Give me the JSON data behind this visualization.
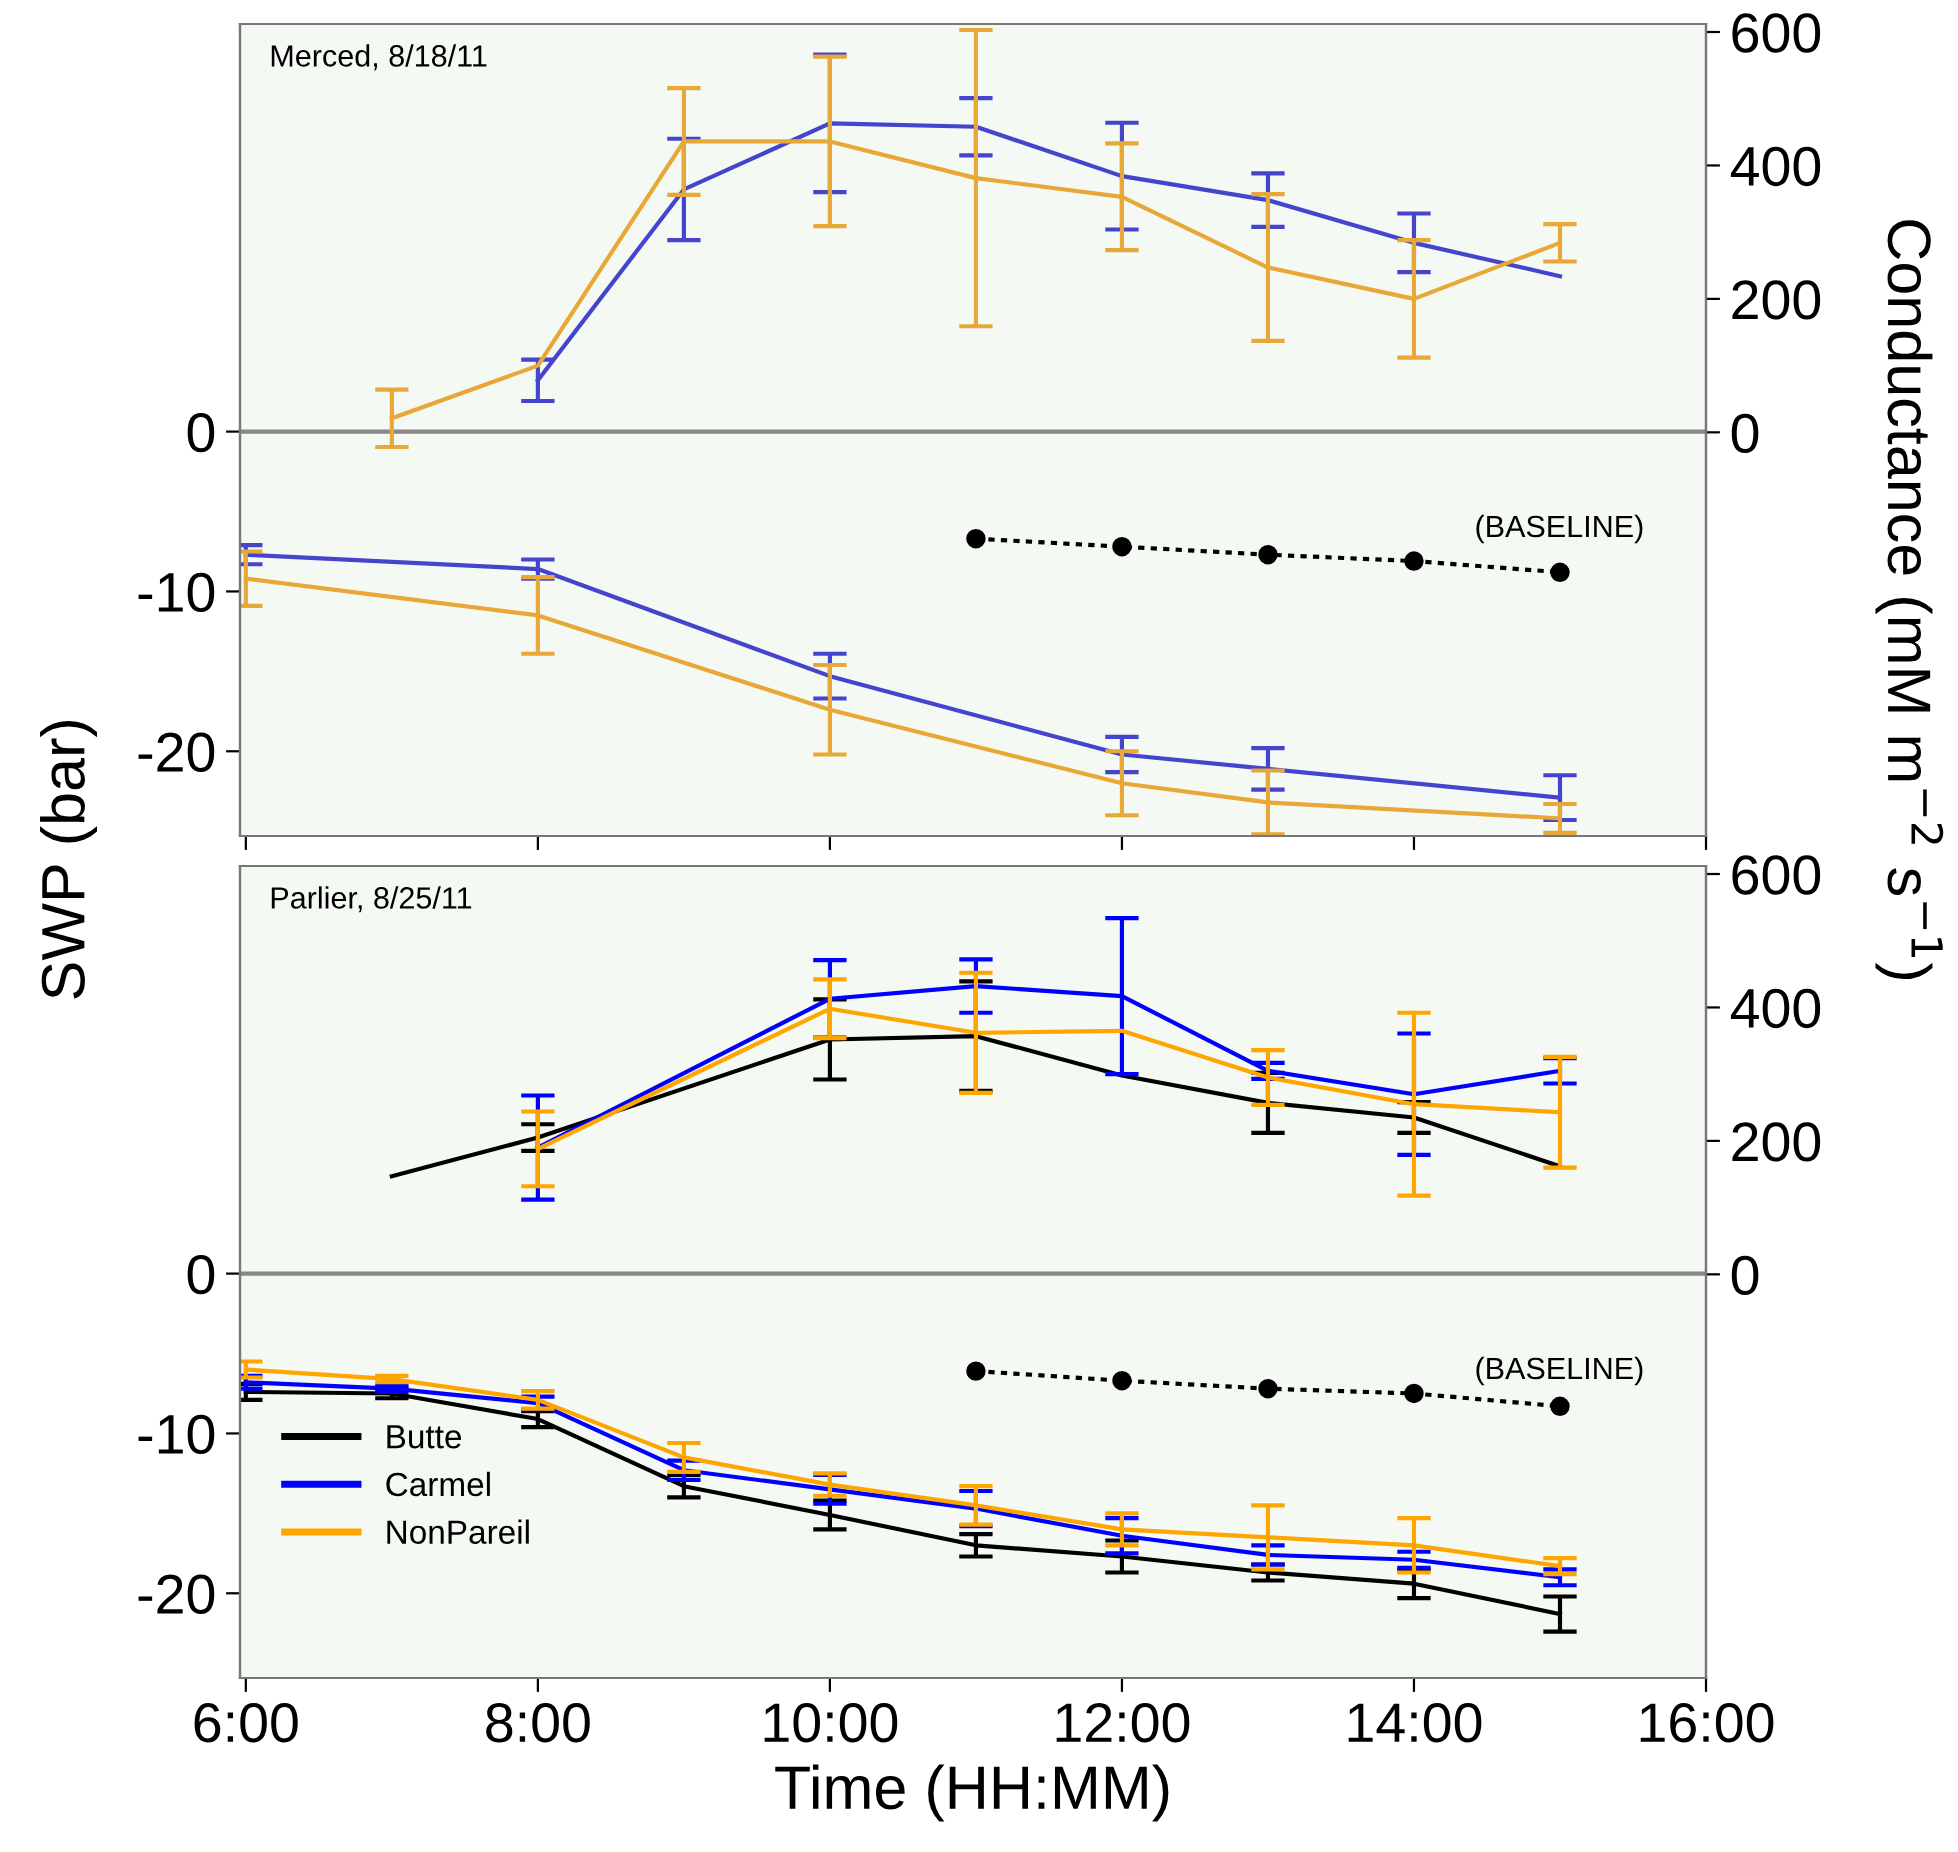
{
  "chart_data": [
    {
      "type": "line",
      "title": "Merced, 8/18/11",
      "ylabel": "SWP (bar)",
      "y2label": "Conductance (mM m$^{−2}$ s$^{−1}$)",
      "xlim": [
        5.96,
        16.0
      ],
      "xticks": [
        {
          "value": 6,
          "label": null
        },
        {
          "value": 8,
          "label": null
        },
        {
          "value": 10,
          "label": null
        },
        {
          "value": 12,
          "label": null
        },
        {
          "value": 14,
          "label": null
        },
        {
          "value": 16,
          "label": null
        }
      ],
      "ylim": [
        -25.3,
        25.5
      ],
      "yticks": [
        0,
        -10,
        -20
      ],
      "y2lim": [
        -605,
        612
      ],
      "y2ticks": [
        0,
        200,
        400,
        600
      ],
      "tick_labels": "y",
      "ref_lines": [
        {
          "axis": "y",
          "value": 0,
          "color": "#888888"
        }
      ],
      "annotations": [
        "(BASELINE)"
      ],
      "series": [
        {
          "axis": "y2",
          "color": "#4444cc",
          "x": [
            8,
            9,
            10,
            11,
            12,
            13,
            14,
            15
          ],
          "values": [
            78,
            364,
            463,
            458,
            384,
            348,
            284,
            234
          ],
          "errors": [
            31,
            76,
            103,
            43,
            80,
            40,
            44,
            null
          ]
        },
        {
          "axis": "y2",
          "color": "#e8a838",
          "x": [
            7,
            8,
            9,
            10,
            11,
            12,
            13,
            14,
            15
          ],
          "values": [
            21,
            100,
            436,
            436,
            381,
            353,
            247,
            200,
            284
          ],
          "errors": [
            43,
            null,
            80,
            127,
            222,
            80,
            110,
            88,
            28
          ]
        },
        {
          "axis": "y",
          "color": "#4444cc",
          "x": [
            6,
            8,
            10,
            12,
            13,
            15
          ],
          "values": [
            -7.7,
            -8.6,
            -15.3,
            -20.2,
            -21.1,
            -22.9
          ],
          "errors": [
            0.6,
            0.6,
            1.4,
            1.1,
            1.3,
            1.4
          ]
        },
        {
          "axis": "y",
          "color": "#e8a838",
          "x": [
            6,
            8,
            10,
            12,
            13,
            15
          ],
          "values": [
            -9.2,
            -11.5,
            -17.4,
            -22.0,
            -23.2,
            -24.2
          ],
          "errors": [
            1.7,
            2.4,
            2.8,
            2.0,
            2.0,
            0.9
          ]
        },
        {
          "axis": "y",
          "color": "#000000",
          "line_style": "dotted",
          "marker": "circle",
          "x": [
            11,
            12,
            13,
            14,
            15
          ],
          "values": [
            -6.7,
            -7.2,
            -7.7,
            -8.1,
            -8.8
          ]
        }
      ]
    },
    {
      "type": "line",
      "title": "Parlier, 8/25/11",
      "xlabel": "Time (HH:MM)",
      "xlim": [
        5.96,
        16.0
      ],
      "xticks": [
        {
          "value": 6,
          "label": "6:00"
        },
        {
          "value": 8,
          "label": "8:00"
        },
        {
          "value": 10,
          "label": "10:00"
        },
        {
          "value": 12,
          "label": "12:00"
        },
        {
          "value": 14,
          "label": "14:00"
        },
        {
          "value": 16,
          "label": "16:00"
        }
      ],
      "ylim": [
        -25.3,
        25.5
      ],
      "yticks": [
        0,
        -10,
        -20
      ],
      "y2lim": [
        -605,
        612
      ],
      "y2ticks": [
        0,
        200,
        400,
        600
      ],
      "legend": "bottom left",
      "ref_lines": [
        {
          "axis": "y",
          "value": 0,
          "color": "#888888"
        }
      ],
      "annotations": [
        "(BASELINE)"
      ],
      "series": [
        {
          "axis": "y2",
          "color": "#000000",
          "x": [
            7,
            8,
            10,
            11,
            12,
            13,
            14,
            15
          ],
          "values": [
            147,
            205,
            352,
            357,
            298,
            257,
            235,
            162
          ],
          "errors": [
            null,
            20,
            60,
            82,
            null,
            45,
            23,
            null
          ]
        },
        {
          "axis": "y2",
          "color": "#0000ff",
          "x": [
            8,
            10,
            11,
            12,
            13,
            14,
            15
          ],
          "values": [
            190,
            413,
            432,
            417,
            305,
            270,
            305
          ],
          "errors": [
            78,
            58,
            40,
            117,
            12,
            91,
            19
          ]
        },
        {
          "axis": "y2",
          "color": "#ffa500",
          "x": [
            8,
            10,
            11,
            12,
            13,
            14,
            15
          ],
          "values": [
            188,
            398,
            362,
            365,
            295,
            255,
            243
          ],
          "errors": [
            56,
            44,
            90,
            null,
            41,
            137,
            83
          ]
        },
        {
          "axis": "y",
          "name": "Butte",
          "color": "#000000",
          "x": [
            6,
            7,
            8,
            9,
            10,
            11,
            12,
            13,
            14,
            15
          ],
          "values": [
            -7.4,
            -7.5,
            -9.1,
            -13.3,
            -15.1,
            -17.0,
            -17.7,
            -18.7,
            -19.4,
            -21.3
          ],
          "errors": [
            0.5,
            0.3,
            0.5,
            0.7,
            0.9,
            0.7,
            1.0,
            0.5,
            0.9,
            1.1
          ]
        },
        {
          "axis": "y",
          "name": "Carmel",
          "color": "#0000ff",
          "x": [
            6,
            7,
            8,
            9,
            10,
            11,
            12,
            13,
            14,
            15
          ],
          "values": [
            -6.8,
            -7.2,
            -8.1,
            -12.3,
            -13.5,
            -14.7,
            -16.4,
            -17.6,
            -17.9,
            -19.0
          ],
          "errors": [
            0.4,
            0.2,
            0.4,
            0.6,
            0.9,
            1.1,
            1.1,
            0.6,
            0.5,
            0.5
          ]
        },
        {
          "axis": "y",
          "name": "NonPareil",
          "color": "#ffa500",
          "x": [
            6,
            7,
            8,
            9,
            10,
            11,
            12,
            13,
            14,
            15
          ],
          "values": [
            -6.0,
            -6.6,
            -7.9,
            -11.5,
            -13.2,
            -14.5,
            -16.0,
            -16.5,
            -17.0,
            -18.3
          ],
          "errors": [
            0.5,
            0.2,
            0.55,
            0.9,
            0.7,
            1.2,
            1.0,
            2.0,
            1.7,
            0.5
          ]
        },
        {
          "axis": "y",
          "color": "#000000",
          "line_style": "dotted",
          "marker": "circle",
          "x": [
            11,
            12,
            13,
            14,
            15
          ],
          "values": [
            -6.1,
            -6.7,
            -7.2,
            -7.5,
            -8.3
          ]
        }
      ]
    }
  ]
}
